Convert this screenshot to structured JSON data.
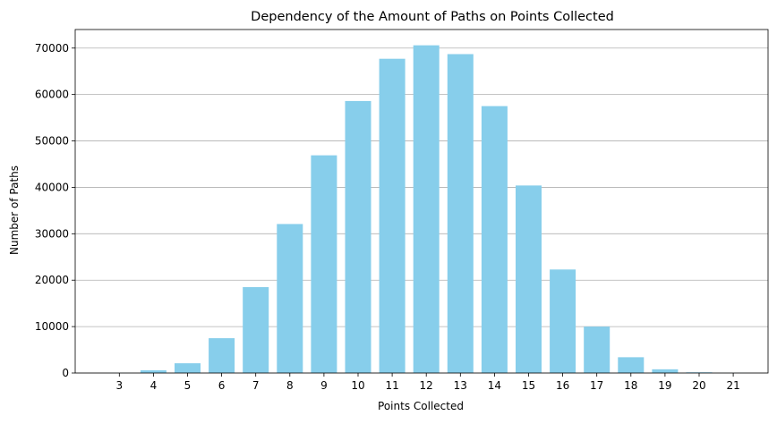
{
  "chart_data": {
    "type": "bar",
    "title": "Dependency of the Amount of Paths on Points Collected",
    "xlabel": "Points Collected",
    "ylabel": "Number of Paths",
    "categories": [
      "3",
      "4",
      "5",
      "6",
      "7",
      "8",
      "9",
      "10",
      "11",
      "12",
      "13",
      "14",
      "15",
      "16",
      "17",
      "18",
      "19",
      "20",
      "21"
    ],
    "values": [
      20,
      600,
      2100,
      7500,
      18500,
      32100,
      46900,
      58600,
      67700,
      70600,
      68700,
      57500,
      40400,
      22300,
      10000,
      3400,
      800,
      150,
      20
    ],
    "ylim": [
      0,
      74000
    ],
    "yticks": [
      "0",
      "10000",
      "20000",
      "30000",
      "40000",
      "50000",
      "60000",
      "70000"
    ],
    "grid": "y-major",
    "bar_color": "#87ceeb",
    "grid_color": "#b0b0b0",
    "axes_color": "#000000"
  }
}
